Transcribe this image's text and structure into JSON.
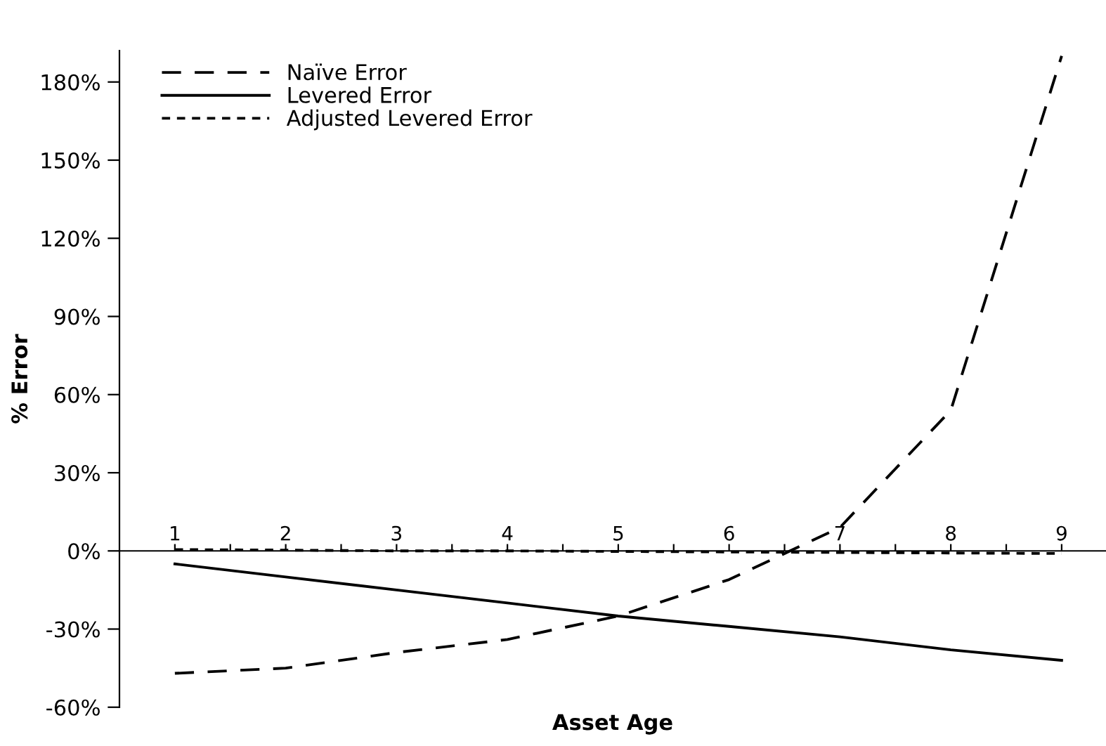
{
  "chart_data": {
    "type": "line",
    "xlabel": "Asset Age",
    "ylabel": "% Error",
    "x": [
      1,
      2,
      3,
      4,
      5,
      6,
      7,
      8,
      9
    ],
    "series": [
      {
        "name": "Naïve Error",
        "color": "#000000",
        "line_style": "dashed",
        "values": [
          -47,
          -45,
          -39,
          -34,
          -25,
          -11,
          9,
          54,
          190
        ]
      },
      {
        "name": "Levered Error",
        "color": "#000000",
        "line_style": "solid",
        "values": [
          -5,
          -10,
          -15,
          -20,
          -25,
          -29,
          -33,
          -38,
          -42
        ]
      },
      {
        "name": "Adjusted Levered Error",
        "color": "#000000",
        "line_style": "dotted",
        "values": [
          0.5,
          0.3,
          0,
          0,
          -0.2,
          -0.4,
          -0.6,
          -0.8,
          -1
        ]
      }
    ],
    "xlim": [
      0.5,
      9.4
    ],
    "xticks": [
      1,
      2,
      3,
      4,
      5,
      6,
      7,
      8,
      9,
      {
        "value": 1.5,
        "label": null
      },
      {
        "value": 2.5,
        "label": null
      },
      {
        "value": 3.5,
        "label": null
      },
      {
        "value": 4.5,
        "label": null
      },
      {
        "value": 5.5,
        "label": null
      },
      {
        "value": 6.5,
        "label": null
      },
      {
        "value": 7.5,
        "label": null
      },
      {
        "value": 8.5,
        "label": null
      }
    ],
    "ylim": [
      -60,
      192
    ],
    "yticks": [
      {
        "value": -60,
        "label": "-60%"
      },
      {
        "value": -30,
        "label": "-30%"
      },
      {
        "value": 0,
        "label": "0%"
      },
      {
        "value": 30,
        "label": "30%"
      },
      {
        "value": 60,
        "label": "60%"
      },
      {
        "value": 90,
        "label": "90%"
      },
      {
        "value": 120,
        "label": "120%"
      },
      {
        "value": 150,
        "label": "150%"
      },
      {
        "value": 180,
        "label": "180%"
      }
    ],
    "grid": false,
    "legend": "top left",
    "marker": "none"
  }
}
